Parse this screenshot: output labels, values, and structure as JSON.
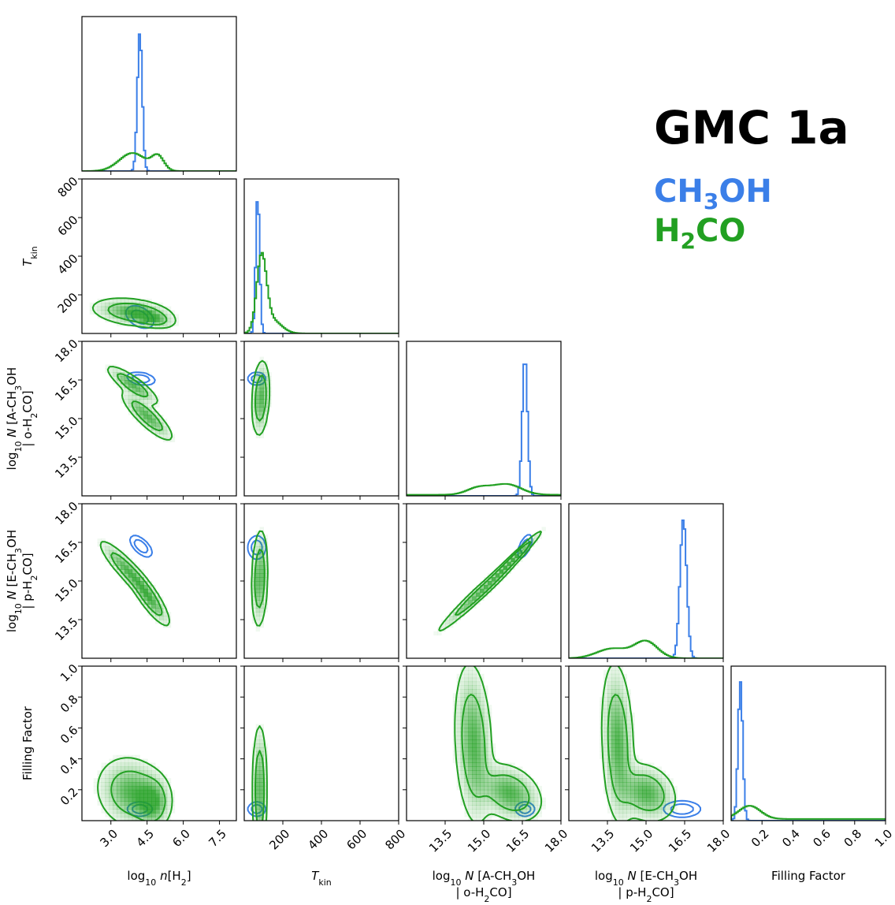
{
  "title": "GMC 1a",
  "legend": {
    "series": [
      {
        "name": "CH3OH",
        "html": "CH<sub>3</sub>OH",
        "color": "#3b7fe8"
      },
      {
        "name": "H2CO",
        "html": "H<sub>2</sub>CO",
        "color": "#22a022"
      }
    ]
  },
  "chart_data": {
    "type": "corner",
    "parameters": [
      {
        "key": "lognH2",
        "label_html": "log<tspan baseline-shift='sub' font-size='11'>10</tspan> <tspan font-style='italic'>n</tspan>[H<tspan baseline-shift='sub' font-size='11'>2</tspan>]",
        "label_text": "log10 n[H2]",
        "range": [
          1.8,
          8.2
        ],
        "ticks": [
          3.0,
          4.5,
          6.0,
          7.5
        ],
        "tick_labels": [
          "3.0",
          "4.5",
          "6.0",
          "7.5"
        ]
      },
      {
        "key": "Tkin",
        "label_html": "<tspan font-style='italic'>T</tspan><tspan baseline-shift='sub' font-size='11'>kin</tspan>",
        "label_text": "T_kin",
        "range": [
          0,
          800
        ],
        "ticks": [
          200,
          400,
          600,
          800
        ],
        "tick_labels": [
          "200",
          "400",
          "600",
          "800"
        ]
      },
      {
        "key": "logNA",
        "label_html": "log<tspan baseline-shift='sub' font-size='11'>10</tspan> <tspan font-style='italic'>N</tspan> [A-CH<tspan baseline-shift='sub' font-size='11'>3</tspan>OH",
        "label2_html": "| o-H<tspan baseline-shift='sub' font-size='11'>2</tspan>CO]",
        "label_text": "log10 N [A-CH3OH | o-H2CO]",
        "range": [
          12.0,
          18.0
        ],
        "ticks": [
          13.5,
          15.0,
          16.5,
          18.0
        ],
        "tick_labels": [
          "13.5",
          "15.0",
          "16.5",
          "18.0"
        ]
      },
      {
        "key": "logNE",
        "label_html": "log<tspan baseline-shift='sub' font-size='11'>10</tspan> <tspan font-style='italic'>N</tspan> [E-CH<tspan baseline-shift='sub' font-size='11'>3</tspan>OH",
        "label2_html": "| p-H<tspan baseline-shift='sub' font-size='11'>2</tspan>CO]",
        "label_text": "log10 N [E-CH3OH | p-H2CO]",
        "range": [
          12.0,
          18.0
        ],
        "ticks": [
          13.5,
          15.0,
          16.5,
          18.0
        ],
        "tick_labels": [
          "13.5",
          "15.0",
          "16.5",
          "18.0"
        ]
      },
      {
        "key": "ff",
        "label_html": "Filling Factor",
        "label_text": "Filling Factor",
        "range": [
          0.0,
          1.0
        ],
        "ticks": [
          0.2,
          0.4,
          0.6,
          0.8,
          1.0
        ],
        "tick_labels": [
          "0.2",
          "0.4",
          "0.6",
          "0.8",
          "1.0"
        ]
      }
    ],
    "y_row_ticks": {
      "1": {
        "ticks": [
          200,
          400,
          600,
          800
        ],
        "tick_labels": [
          "200",
          "400",
          "600",
          "800"
        ]
      },
      "2": {
        "ticks": [
          13.5,
          15.0,
          16.5,
          18.0
        ],
        "tick_labels": [
          "13.5",
          "15.0",
          "16.5",
          "18.0"
        ]
      },
      "3": {
        "ticks": [
          13.5,
          15.0,
          16.5,
          18.0
        ],
        "tick_labels": [
          "13.5",
          "15.0",
          "16.5",
          "18.0"
        ]
      },
      "4": {
        "ticks": [
          0.2,
          0.4,
          0.6,
          0.8,
          1.0
        ],
        "tick_labels": [
          "0.2",
          "0.4",
          "0.6",
          "0.8",
          "1.0"
        ]
      }
    },
    "series": [
      {
        "name": "CH3OH",
        "color": "#3b7fe8",
        "marginals": [
          {
            "components": [
              [
                4.2,
                0.1,
                1.0
              ]
            ],
            "floor": 0.0
          },
          {
            "components": [
              [
                70,
                10,
                1.0
              ]
            ],
            "floor": 0.0
          },
          {
            "components": [
              [
                16.6,
                0.1,
                1.0
              ]
            ],
            "floor": 0.0
          },
          {
            "components": [
              [
                16.45,
                0.13,
                1.0
              ]
            ],
            "floor": 0.0
          },
          {
            "components": [
              [
                0.06,
                0.015,
                1.0
              ]
            ],
            "floor": 0.0
          }
        ],
        "peaks": [
          1.0,
          1.0,
          1.0,
          1.0,
          1.0
        ],
        "pairs": [
          {
            "r": 1,
            "c": 0,
            "blobs": [
              [
                4.2,
                85,
                0.28,
                28,
                -0.4
              ]
            ]
          },
          {
            "r": 2,
            "c": 0,
            "blobs": [
              [
                4.25,
                16.55,
                0.28,
                0.12,
                -0.3
              ]
            ]
          },
          {
            "r": 2,
            "c": 1,
            "blobs": [
              [
                65,
                16.55,
                22,
                0.12,
                0.0
              ]
            ]
          },
          {
            "r": 3,
            "c": 0,
            "blobs": [
              [
                4.25,
                16.35,
                0.22,
                0.2,
                -0.6
              ]
            ]
          },
          {
            "r": 3,
            "c": 1,
            "blobs": [
              [
                65,
                16.3,
                22,
                0.22,
                0.0
              ]
            ]
          },
          {
            "r": 3,
            "c": 2,
            "blobs": [
              [
                16.6,
                16.35,
                0.13,
                0.22,
                0.6
              ]
            ]
          },
          {
            "r": 4,
            "c": 0,
            "blobs": [
              [
                4.2,
                0.075,
                0.25,
                0.022,
                0.0
              ]
            ]
          },
          {
            "r": 4,
            "c": 1,
            "blobs": [
              [
                65,
                0.075,
                22,
                0.022,
                0.0
              ]
            ]
          },
          {
            "r": 4,
            "c": 2,
            "blobs": [
              [
                16.6,
                0.075,
                0.18,
                0.022,
                0.0
              ]
            ]
          },
          {
            "r": 4,
            "c": 3,
            "blobs": [
              [
                16.4,
                0.075,
                0.35,
                0.025,
                0.0
              ]
            ]
          }
        ]
      },
      {
        "name": "H2CO",
        "color": "#22a022",
        "marginals": [
          {
            "components": [
              [
                3.9,
                0.55,
                0.13
              ],
              [
                4.95,
                0.25,
                0.1
              ]
            ],
            "floor": 0.0
          },
          {
            "components": [
              [
                90,
                25,
                0.52
              ],
              [
                140,
                50,
                0.1
              ]
            ],
            "floor": 0.0
          },
          {
            "components": [
              [
                14.8,
                0.45,
                0.05
              ],
              [
                15.9,
                0.55,
                0.075
              ]
            ],
            "floor": 0.008
          },
          {
            "components": [
              [
                13.7,
                0.6,
                0.07
              ],
              [
                15.0,
                0.45,
                0.12
              ]
            ],
            "floor": 0.0
          },
          {
            "components": [
              [
                0.12,
                0.07,
                0.095
              ]
            ],
            "floor": 0.012
          }
        ],
        "peaks": [
          1.0,
          1.0,
          1.0,
          1.0,
          1.0
        ],
        "pairs": [
          {
            "r": 1,
            "c": 0,
            "blobs": [
              [
                3.9,
                110,
                0.8,
                35,
                -0.3
              ],
              [
                4.6,
                85,
                0.45,
                25,
                -0.5
              ]
            ]
          },
          {
            "r": 2,
            "c": 0,
            "blobs": [
              [
                3.9,
                16.3,
                0.5,
                0.35,
                -0.85
              ],
              [
                4.5,
                15.1,
                0.5,
                0.45,
                -0.85
              ]
            ]
          },
          {
            "r": 2,
            "c": 1,
            "blobs": [
              [
                85,
                15.8,
                22,
                0.7,
                0.2
              ]
            ]
          },
          {
            "r": 3,
            "c": 0,
            "blobs": [
              [
                3.7,
                15.4,
                0.55,
                0.55,
                -0.9
              ],
              [
                4.6,
                14.3,
                0.4,
                0.5,
                -0.85
              ]
            ]
          },
          {
            "r": 3,
            "c": 1,
            "blobs": [
              [
                80,
                15.1,
                20,
                0.9,
                0.15
              ]
            ]
          },
          {
            "r": 3,
            "c": 2,
            "blobs": [
              [
                14.9,
                14.6,
                0.8,
                0.75,
                0.98
              ],
              [
                16.2,
                15.9,
                0.5,
                0.5,
                0.98
              ]
            ]
          },
          {
            "r": 4,
            "c": 0,
            "blobs": [
              [
                3.9,
                0.18,
                0.7,
                0.11,
                -0.15
              ],
              [
                4.7,
                0.12,
                0.35,
                0.08,
                0.0
              ]
            ]
          },
          {
            "r": 4,
            "c": 1,
            "blobs": [
              [
                80,
                0.2,
                18,
                0.2,
                0.0
              ]
            ]
          },
          {
            "r": 4,
            "c": 2,
            "blobs": [
              [
                16.0,
                0.18,
                0.6,
                0.09,
                -0.3
              ],
              [
                14.6,
                0.5,
                0.35,
                0.25,
                -0.2
              ]
            ]
          },
          {
            "r": 4,
            "c": 3,
            "blobs": [
              [
                15.0,
                0.18,
                0.55,
                0.09,
                -0.2
              ],
              [
                13.9,
                0.5,
                0.3,
                0.25,
                -0.2
              ]
            ]
          }
        ]
      }
    ],
    "contour_levels": [
      0.12,
      0.45
    ]
  }
}
